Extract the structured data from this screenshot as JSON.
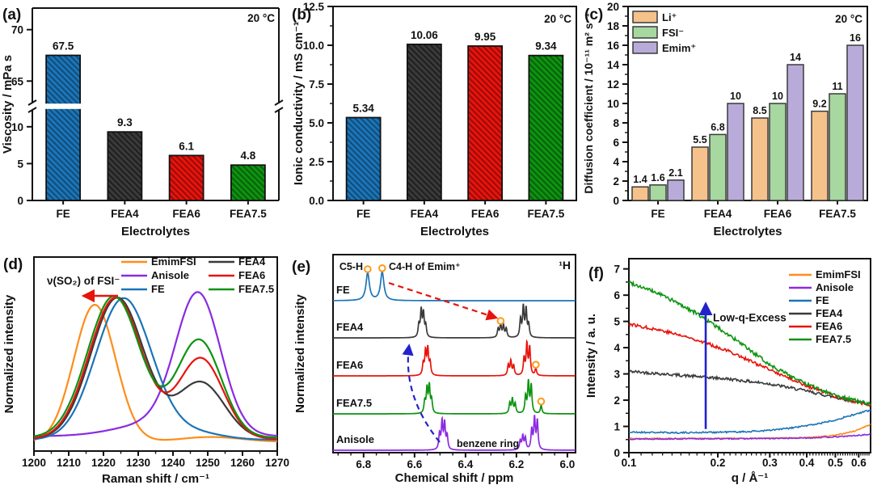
{
  "page": {
    "background": "#ffffff"
  },
  "palette": {
    "FE": "#1b74b8",
    "FEA4": "#3a3a3a",
    "FEA6": "#e8130c",
    "FEA7.5": "#0d9310",
    "EmimFSI": "#ff8c1a",
    "Anisole": "#8a2be2",
    "annotation_blue": "#2222cc",
    "circle_orange": "#ff9a1a",
    "annotation_red": "#e8130c"
  },
  "chart_data": [
    {
      "id": "a",
      "type": "bar",
      "panel_label": "(a)",
      "corner_note": "20 °C",
      "xlabel": "Electrolytes",
      "ylabel": "Viscosity / mPa s",
      "categories": [
        "FE",
        "FEA4",
        "FEA6",
        "FEA7.5"
      ],
      "values": [
        67.5,
        9.3,
        6.1,
        4.8
      ],
      "value_labels": [
        "67.5",
        "9.3",
        "6.1",
        "4.8"
      ],
      "bar_colors": [
        "#1b74b8",
        "#3a3a3a",
        "#e8130c",
        "#0d9310"
      ],
      "hatched": true,
      "axis_break": {
        "lower_range": [
          0,
          12.3
        ],
        "upper_range": [
          62.9,
          72
        ],
        "lower_ticks": [
          0,
          5,
          10
        ],
        "upper_ticks": [
          65,
          70
        ]
      }
    },
    {
      "id": "b",
      "type": "bar",
      "panel_label": "(b)",
      "corner_note": "20 °C",
      "xlabel": "Electrolytes",
      "ylabel": "Ionic conductivity / mS cm⁻¹",
      "categories": [
        "FE",
        "FEA4",
        "FEA6",
        "FEA7.5"
      ],
      "values": [
        5.34,
        10.06,
        9.95,
        9.34
      ],
      "value_labels": [
        "5.34",
        "10.06",
        "9.95",
        "9.34"
      ],
      "bar_colors": [
        "#1b74b8",
        "#3a3a3a",
        "#e8130c",
        "#0d9310"
      ],
      "hatched": true,
      "ylim": [
        0,
        12.5
      ],
      "yticks": [
        0,
        2.5,
        5,
        7.5,
        10,
        12.5
      ],
      "ytick_labels": [
        "0.0",
        "2.5",
        "5.0",
        "7.5",
        "10.0",
        "12.5"
      ],
      "yminor_step": 1.25
    },
    {
      "id": "c",
      "type": "grouped_bar",
      "panel_label": "(c)",
      "corner_note": "20 °C",
      "xlabel": "Electrolytes",
      "ylabel": "Diffusion coefficient / 10⁻¹¹ m² s⁻¹",
      "categories": [
        "FE",
        "FEA4",
        "FEA6",
        "FEA7.5"
      ],
      "series": [
        {
          "name": "Li⁺",
          "fill": "#f6c28b",
          "values": [
            1.4,
            5.5,
            8.5,
            9.2
          ],
          "value_labels": [
            "1.4",
            "5.5",
            "8.5",
            "9.2"
          ]
        },
        {
          "name": "FSI⁻",
          "fill": "#a6d8a0",
          "values": [
            1.6,
            6.8,
            10,
            11
          ],
          "value_labels": [
            "1.6",
            "6.8",
            "10",
            "11"
          ]
        },
        {
          "name": "Emim⁺",
          "fill": "#b9abd9",
          "values": [
            2.1,
            10,
            14,
            16
          ],
          "value_labels": [
            "2.1",
            "10",
            "14",
            "16"
          ]
        }
      ],
      "group_label_colors": [
        "#1b74b8",
        "#3a3a3a",
        "#e8130c",
        "#0d9310"
      ],
      "bar_edge": "#3a3a3a",
      "ylim": [
        0,
        20
      ],
      "ytick_step": 2
    },
    {
      "id": "d",
      "type": "line",
      "panel_label": "(d)",
      "xlabel": "Raman shift / cm⁻¹",
      "ylabel": "Normalized intensity",
      "xlim": [
        1200,
        1270
      ],
      "xtick_step": 10,
      "annotation": {
        "text": "ν(SO₂) of FSI⁻"
      },
      "legend_order": [
        [
          "EmimFSI",
          "Anisole",
          "FE"
        ],
        [
          "FEA4",
          "FEA6",
          "FEA7.5"
        ]
      ],
      "series": [
        {
          "name": "EmimFSI",
          "color": "#ff8c1a",
          "base": 0.03,
          "gaussians": [
            [
              1217.5,
              0.97,
              6.0
            ],
            [
              1251,
              0.035,
              9
            ]
          ]
        },
        {
          "name": "Anisole",
          "color": "#8a2be2",
          "base": 0.07,
          "gaussians": [
            [
              1247.3,
              0.95,
              6.4
            ],
            [
              1237,
              0.1,
              12
            ]
          ]
        },
        {
          "name": "FE",
          "color": "#1b74b8",
          "base": 0.045,
          "gaussians": [
            [
              1225.8,
              1.0,
              8.0
            ],
            [
              1246,
              0.05,
              8
            ]
          ]
        },
        {
          "name": "FEA4",
          "color": "#3a3a3a",
          "base": 0.05,
          "gaussians": [
            [
              1224,
              1.0,
              7.6
            ],
            [
              1248,
              0.4,
              6.8
            ]
          ]
        },
        {
          "name": "FEA6",
          "color": "#e8130c",
          "base": 0.05,
          "gaussians": [
            [
              1223.5,
              1.0,
              7.6
            ],
            [
              1248,
              0.57,
              6.4
            ]
          ]
        },
        {
          "name": "FEA7.5",
          "color": "#0d9310",
          "base": 0.06,
          "gaussians": [
            [
              1223,
              1.0,
              7.6
            ],
            [
              1247.5,
              0.69,
              6.4
            ]
          ]
        }
      ]
    },
    {
      "id": "e",
      "type": "nmr",
      "panel_label": "(e)",
      "corner_note": "¹H",
      "xlabel": "Chemical shift / ppm",
      "ylabel": "Normalized intensity",
      "xlim": [
        6.92,
        5.968
      ],
      "xticks": [
        6.8,
        6.6,
        6.4,
        6.2,
        6.0
      ],
      "annotations": {
        "c5h": "C5-H",
        "c4h": "C4-H of Emim⁺",
        "benzene": "benzene ring"
      },
      "traces": [
        {
          "name": "FE",
          "color": "#1b74b8",
          "circles": [
            6.784,
            6.727
          ],
          "peaks": [
            [
              6.784,
              0.85,
              0.008
            ],
            [
              6.727,
              0.88,
              0.008
            ]
          ]
        },
        {
          "name": "FEA4",
          "color": "#3a3a3a",
          "circles": [
            6.262
          ],
          "peaks": [
            [
              6.583,
              0.38
            ],
            [
              6.574,
              0.8
            ],
            [
              6.565,
              0.72
            ],
            [
              6.556,
              0.35
            ],
            [
              6.272,
              0.26
            ],
            [
              6.262,
              0.4
            ],
            [
              6.251,
              0.36
            ],
            [
              6.24,
              0.27
            ],
            [
              6.184,
              0.55
            ],
            [
              6.173,
              0.92
            ],
            [
              6.162,
              0.85
            ],
            [
              6.152,
              0.38
            ]
          ]
        },
        {
          "name": "FEA6",
          "color": "#e8130c",
          "circles": [
            6.124
          ],
          "peaks": [
            [
              6.566,
              0.35
            ],
            [
              6.557,
              0.72
            ],
            [
              6.548,
              0.8
            ],
            [
              6.539,
              0.38
            ],
            [
              6.232,
              0.32
            ],
            [
              6.222,
              0.44
            ],
            [
              6.211,
              0.3
            ],
            [
              6.17,
              0.52
            ],
            [
              6.159,
              0.95
            ],
            [
              6.148,
              0.85
            ],
            [
              6.124,
              0.22
            ]
          ]
        },
        {
          "name": "FEA7.5",
          "color": "#0d9310",
          "circles": [
            6.103
          ],
          "peaks": [
            [
              6.56,
              0.36
            ],
            [
              6.551,
              0.74
            ],
            [
              6.542,
              0.82
            ],
            [
              6.533,
              0.4
            ],
            [
              6.226,
              0.32
            ],
            [
              6.216,
              0.44
            ],
            [
              6.205,
              0.3
            ],
            [
              6.164,
              0.52
            ],
            [
              6.153,
              0.95
            ],
            [
              6.142,
              0.85
            ],
            [
              6.103,
              0.26
            ]
          ]
        },
        {
          "name": "Anisole",
          "color": "#8a2be2",
          "circles": [],
          "peaks": [
            [
              6.502,
              0.48
            ],
            [
              6.492,
              0.85
            ],
            [
              6.482,
              0.8
            ],
            [
              6.472,
              0.42
            ],
            [
              6.185,
              0.28
            ],
            [
              6.175,
              0.42
            ],
            [
              6.165,
              0.36
            ],
            [
              6.14,
              0.6
            ],
            [
              6.129,
              0.95
            ],
            [
              6.118,
              0.88
            ]
          ]
        }
      ]
    },
    {
      "id": "f",
      "type": "log_line",
      "panel_label": "(f)",
      "xlabel": "q / Å⁻¹",
      "ylabel": "Intensity / a. u.",
      "xlim": [
        0.1,
        0.658
      ],
      "xticks": [
        0.1,
        0.2,
        0.3,
        0.4,
        0.5,
        0.6
      ],
      "ylim": [
        0,
        7.39
      ],
      "ytick_step": 1,
      "annotation": {
        "text": "Low-q-Excess",
        "arrow_q": 0.182,
        "arrow_y": [
          0.9,
          5.65
        ],
        "color": "#2222cc"
      },
      "series": [
        {
          "name": "EmimFSI",
          "color": "#ff8c1a",
          "noise": 0.02,
          "seed": 7,
          "points": [
            [
              0.1,
              0.54
            ],
            [
              0.2,
              0.54
            ],
            [
              0.3,
              0.55
            ],
            [
              0.4,
              0.57
            ],
            [
              0.5,
              0.66
            ],
            [
              0.58,
              0.82
            ],
            [
              0.658,
              1.08
            ]
          ]
        },
        {
          "name": "Anisole",
          "color": "#8a2be2",
          "noise": 0.02,
          "seed": 13,
          "points": [
            [
              0.1,
              0.52
            ],
            [
              0.2,
              0.53
            ],
            [
              0.3,
              0.54
            ],
            [
              0.4,
              0.56
            ],
            [
              0.5,
              0.6
            ],
            [
              0.6,
              0.66
            ],
            [
              0.658,
              0.7
            ]
          ]
        },
        {
          "name": "FE",
          "color": "#1b74b8",
          "noise": 0.03,
          "seed": 21,
          "points": [
            [
              0.1,
              0.78
            ],
            [
              0.15,
              0.76
            ],
            [
              0.2,
              0.78
            ],
            [
              0.25,
              0.8
            ],
            [
              0.3,
              0.85
            ],
            [
              0.35,
              0.93
            ],
            [
              0.4,
              1.03
            ],
            [
              0.45,
              1.13
            ],
            [
              0.5,
              1.25
            ],
            [
              0.55,
              1.38
            ],
            [
              0.6,
              1.5
            ],
            [
              0.658,
              1.62
            ]
          ]
        },
        {
          "name": "FEA4",
          "color": "#3a3a3a",
          "noise": 0.055,
          "seed": 42,
          "points": [
            [
              0.1,
              3.1
            ],
            [
              0.13,
              3.0
            ],
            [
              0.17,
              2.9
            ],
            [
              0.22,
              2.8
            ],
            [
              0.3,
              2.62
            ],
            [
              0.4,
              2.35
            ],
            [
              0.5,
              2.1
            ],
            [
              0.6,
              1.92
            ],
            [
              0.658,
              1.85
            ]
          ]
        },
        {
          "name": "FEA6",
          "color": "#e8130c",
          "noise": 0.06,
          "seed": 77,
          "points": [
            [
              0.1,
              4.9
            ],
            [
              0.13,
              4.65
            ],
            [
              0.17,
              4.3
            ],
            [
              0.22,
              3.85
            ],
            [
              0.3,
              3.15
            ],
            [
              0.4,
              2.55
            ],
            [
              0.5,
              2.15
            ],
            [
              0.6,
              1.9
            ],
            [
              0.658,
              1.8
            ]
          ]
        },
        {
          "name": "FEA7.5",
          "color": "#0d9310",
          "noise": 0.07,
          "seed": 99,
          "points": [
            [
              0.1,
              6.5
            ],
            [
              0.13,
              6.0
            ],
            [
              0.17,
              5.3
            ],
            [
              0.22,
              4.45
            ],
            [
              0.3,
              3.35
            ],
            [
              0.4,
              2.6
            ],
            [
              0.5,
              2.2
            ],
            [
              0.6,
              1.95
            ],
            [
              0.658,
              1.85
            ]
          ]
        }
      ]
    }
  ]
}
